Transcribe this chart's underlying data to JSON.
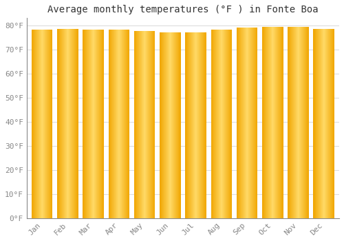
{
  "title": "Average monthly temperatures (°F ) in Fonte Boa",
  "months": [
    "Jan",
    "Feb",
    "Mar",
    "Apr",
    "May",
    "Jun",
    "Jul",
    "Aug",
    "Sep",
    "Oct",
    "Nov",
    "Dec"
  ],
  "values": [
    78.1,
    78.4,
    78.1,
    78.1,
    77.7,
    77.2,
    77.0,
    78.1,
    79.0,
    79.5,
    79.3,
    78.6
  ],
  "bar_color_center": "#FFD966",
  "bar_color_edge": "#F0A500",
  "yticks": [
    0,
    10,
    20,
    30,
    40,
    50,
    60,
    70,
    80
  ],
  "ylim": [
    0,
    83
  ],
  "background_color": "#FFFFFF",
  "plot_bg_color": "#FFFFFF",
  "grid_color": "#DDDDDD",
  "title_fontsize": 10,
  "tick_fontsize": 8,
  "tick_color": "#888888"
}
